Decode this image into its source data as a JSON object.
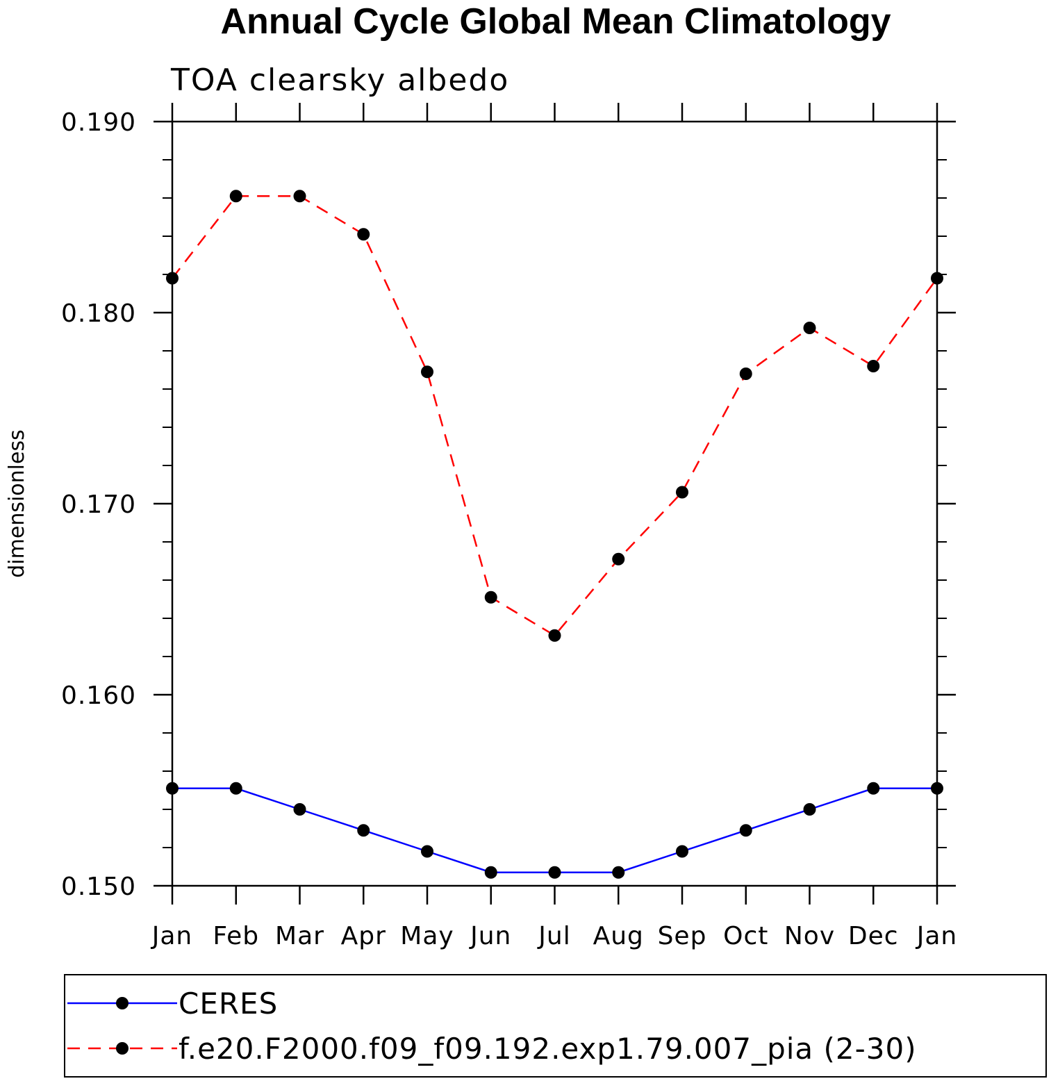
{
  "chart_data": {
    "type": "line",
    "title": "Annual Cycle Global Mean Climatology",
    "subtitle": "TOA clearsky albedo",
    "ylabel": "dimensionless",
    "xlabel": "",
    "categories": [
      "Jan",
      "Feb",
      "Mar",
      "Apr",
      "May",
      "Jun",
      "Jul",
      "Aug",
      "Sep",
      "Oct",
      "Nov",
      "Dec",
      "Jan"
    ],
    "ylim": [
      0.15,
      0.19
    ],
    "yticks": [
      "0.150",
      "0.160",
      "0.170",
      "0.180",
      "0.190"
    ],
    "series": [
      {
        "name": "CERES",
        "color": "#0000ff",
        "dash": "solid",
        "values": [
          0.1551,
          0.1551,
          0.154,
          0.1529,
          0.1518,
          0.1507,
          0.1507,
          0.1507,
          0.1518,
          0.1529,
          0.154,
          0.1551,
          0.1551
        ]
      },
      {
        "name": "f.e20.F2000.f09_f09.192.exp1.79.007_pia (2-30)",
        "color": "#ff0000",
        "dash": "dashed",
        "values": [
          0.1818,
          0.1861,
          0.1861,
          0.1841,
          0.1769,
          0.1651,
          0.1631,
          0.1671,
          0.1706,
          0.1768,
          0.1792,
          0.1772,
          0.1818
        ]
      }
    ],
    "marker_color": "#000000",
    "legend_position": "bottom"
  }
}
